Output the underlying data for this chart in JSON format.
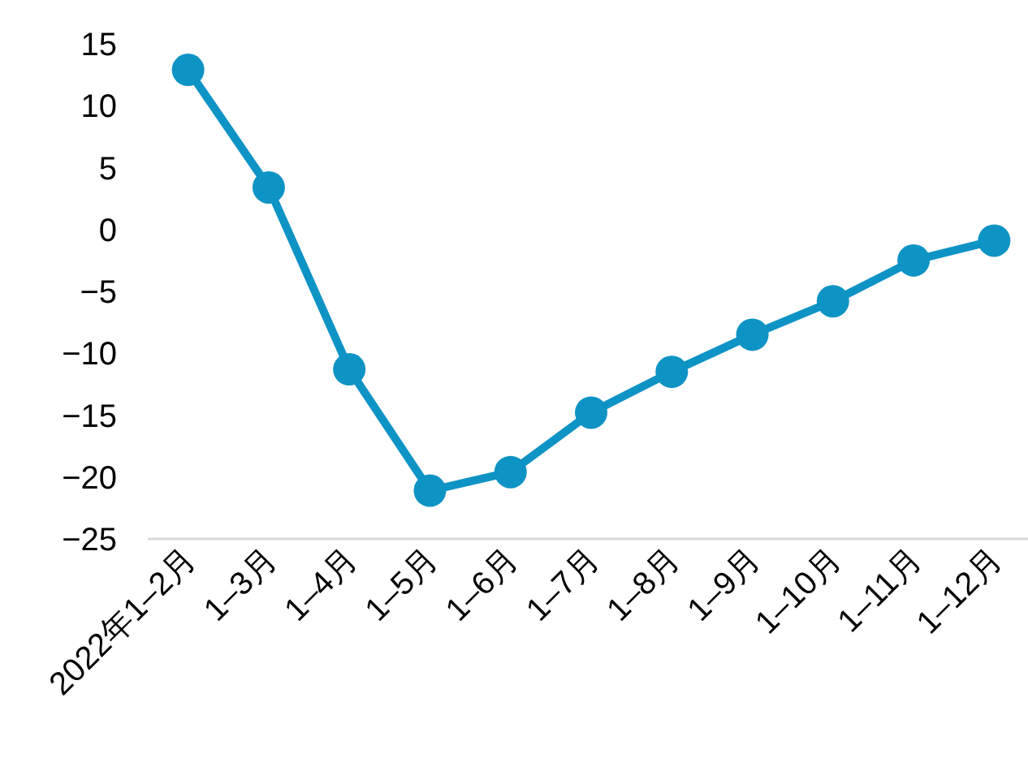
{
  "chart_data": {
    "type": "line",
    "categories": [
      "2022年1–2月",
      "1–3月",
      "1–4月",
      "1–5月",
      "1–6月",
      "1–7月",
      "1–8月",
      "1–9月",
      "1–10月",
      "1–11月",
      "1–12月"
    ],
    "series": [
      {
        "color": "#0e93c5",
        "values": [
          12.9,
          3.4,
          -11.3,
          -21.1,
          -19.6,
          -14.8,
          -11.5,
          -8.5,
          -5.8,
          -2.5,
          -0.9
        ]
      }
    ],
    "ylim": [
      -25,
      15
    ],
    "yticks": [
      -25,
      -20,
      -15,
      -10,
      -5,
      0,
      5,
      10,
      15
    ],
    "marker": "circle",
    "line_style": "solid"
  }
}
